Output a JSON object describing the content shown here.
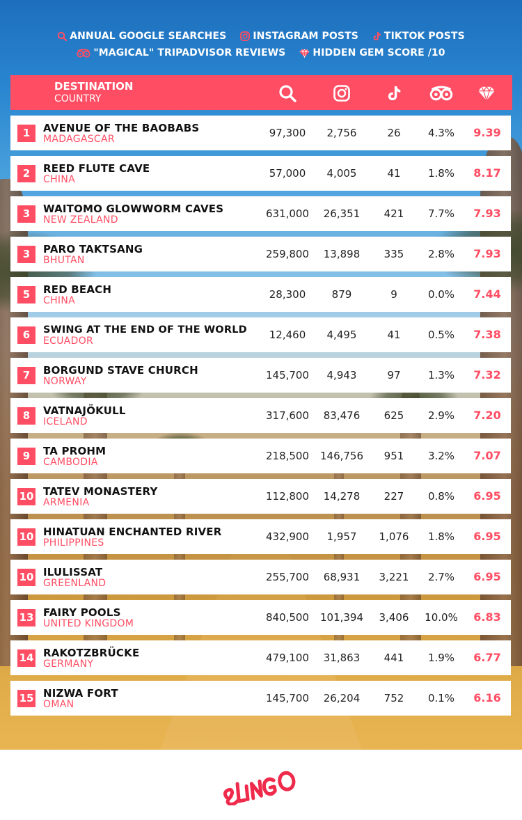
{
  "legend": {
    "row1": [
      {
        "icon": "search-icon",
        "label": "ANNUAL GOOGLE SEARCHES"
      },
      {
        "icon": "instagram-icon",
        "label": "INSTAGRAM POSTS"
      },
      {
        "icon": "tiktok-icon",
        "label": "TIKTOK POSTS"
      }
    ],
    "row2": [
      {
        "icon": "tripadvisor-icon",
        "label": "\"MAGICAL\" TRIPADVISOR REVIEWS"
      },
      {
        "icon": "gem-icon",
        "label": "HIDDEN GEM SCORE /10"
      }
    ]
  },
  "header": {
    "destination": "DESTINATION",
    "country": "COUNTRY",
    "icons": [
      "search-icon",
      "instagram-icon",
      "tiktok-icon",
      "tripadvisor-icon",
      "gem-icon"
    ]
  },
  "colors": {
    "accent": "#ff4d63",
    "text": "#111111",
    "row_bg": "#ffffff"
  },
  "rows": [
    {
      "rank": "1",
      "name": "AVENUE OF THE BAOBABS",
      "country": "MADAGASCAR",
      "searches": "97,300",
      "instagram": "2,756",
      "tiktok": "26",
      "tripadvisor": "4.3%",
      "score": "9.39"
    },
    {
      "rank": "2",
      "name": "REED FLUTE CAVE",
      "country": "CHINA",
      "searches": "57,000",
      "instagram": "4,005",
      "tiktok": "41",
      "tripadvisor": "1.8%",
      "score": "8.17"
    },
    {
      "rank": "3",
      "name": "WAITOMO GLOWWORM CAVES",
      "country": "NEW ZEALAND",
      "searches": "631,000",
      "instagram": "26,351",
      "tiktok": "421",
      "tripadvisor": "7.7%",
      "score": "7.93"
    },
    {
      "rank": "3",
      "name": "PARO TAKTSANG",
      "country": "BHUTAN",
      "searches": "259,800",
      "instagram": "13,898",
      "tiktok": "335",
      "tripadvisor": "2.8%",
      "score": "7.93"
    },
    {
      "rank": "5",
      "name": "RED BEACH",
      "country": "CHINA",
      "searches": "28,300",
      "instagram": "879",
      "tiktok": "9",
      "tripadvisor": "0.0%",
      "score": "7.44"
    },
    {
      "rank": "6",
      "name": "SWING AT THE END OF THE WORLD",
      "country": "ECUADOR",
      "searches": "12,460",
      "instagram": "4,495",
      "tiktok": "41",
      "tripadvisor": "0.5%",
      "score": "7.38"
    },
    {
      "rank": "7",
      "name": "BORGUND STAVE CHURCH",
      "country": "NORWAY",
      "searches": "145,700",
      "instagram": "4,943",
      "tiktok": "97",
      "tripadvisor": "1.3%",
      "score": "7.32"
    },
    {
      "rank": "8",
      "name": "VATNAJÖKULL",
      "country": "ICELAND",
      "searches": "317,600",
      "instagram": "83,476",
      "tiktok": "625",
      "tripadvisor": "2.9%",
      "score": "7.20"
    },
    {
      "rank": "9",
      "name": "TA PROHM",
      "country": "CAMBODIA",
      "searches": "218,500",
      "instagram": "146,756",
      "tiktok": "951",
      "tripadvisor": "3.2%",
      "score": "7.07"
    },
    {
      "rank": "10",
      "name": "TATEV MONASTERY",
      "country": "ARMENIA",
      "searches": "112,800",
      "instagram": "14,278",
      "tiktok": "227",
      "tripadvisor": "0.8%",
      "score": "6.95"
    },
    {
      "rank": "10",
      "name": "HINATUAN ENCHANTED RIVER",
      "country": "PHILIPPINES",
      "searches": "432,900",
      "instagram": "1,957",
      "tiktok": "1,076",
      "tripadvisor": "1.8%",
      "score": "6.95"
    },
    {
      "rank": "10",
      "name": "ILULISSAT",
      "country": "GREENLAND",
      "searches": "255,700",
      "instagram": "68,931",
      "tiktok": "3,221",
      "tripadvisor": "2.7%",
      "score": "6.95"
    },
    {
      "rank": "13",
      "name": "FAIRY POOLS",
      "country": "UNITED KINGDOM",
      "searches": "840,500",
      "instagram": "101,394",
      "tiktok": "3,406",
      "tripadvisor": "10.0%",
      "score": "6.83"
    },
    {
      "rank": "14",
      "name": "RAKOTZBRÜCKE",
      "country": "GERMANY",
      "searches": "479,100",
      "instagram": "31,863",
      "tiktok": "441",
      "tripadvisor": "1.9%",
      "score": "6.77"
    },
    {
      "rank": "15",
      "name": "NIZWA FORT",
      "country": "OMAN",
      "searches": "145,700",
      "instagram": "26,204",
      "tiktok": "752",
      "tripadvisor": "0.1%",
      "score": "6.16"
    }
  ],
  "footer": {
    "logo": "SLINGO"
  }
}
